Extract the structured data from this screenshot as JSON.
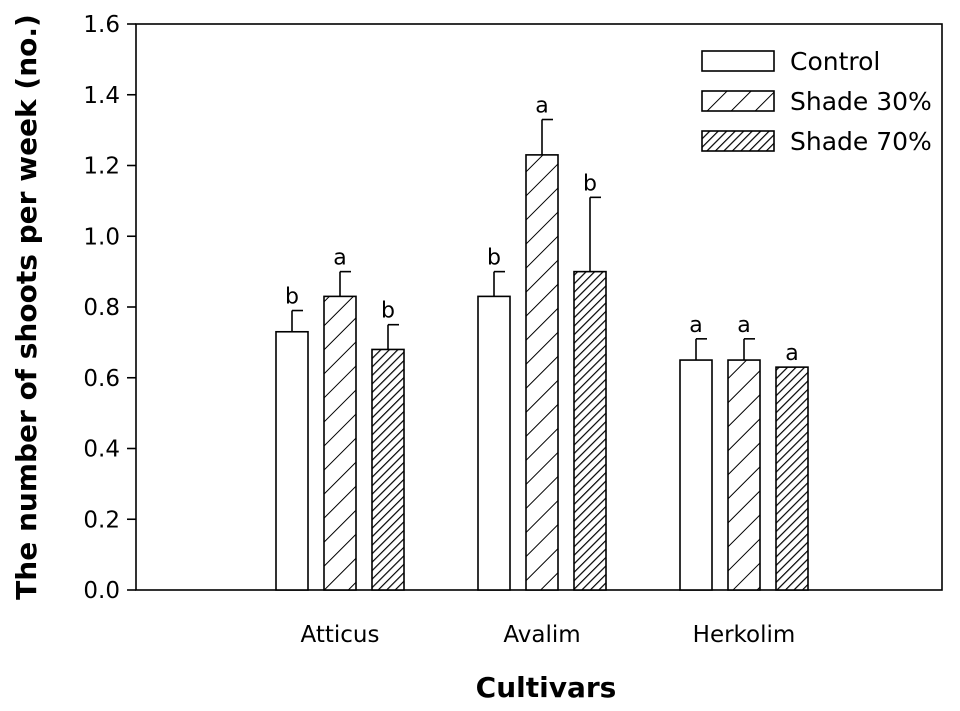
{
  "chart_data": {
    "type": "bar",
    "xlabel": "Cultivars",
    "ylabel": "The number of shoots per week (no.)",
    "ylim": [
      0,
      1.6
    ],
    "ytick_step": 0.2,
    "yticks": [
      "0.0",
      "0.2",
      "0.4",
      "0.6",
      "0.8",
      "1.0",
      "1.2",
      "1.4",
      "1.6"
    ],
    "categories": [
      "Atticus",
      "Avalim",
      "Herkolim"
    ],
    "legend_position": "top-right",
    "grid": false,
    "series": [
      {
        "name": "Control",
        "pattern": "none",
        "values": [
          0.73,
          0.83,
          0.65
        ],
        "errors": [
          0.06,
          0.07,
          0.06
        ],
        "letters": [
          "b",
          "b",
          "a"
        ]
      },
      {
        "name": "Shade 30%",
        "pattern": "sparse-diagonal",
        "values": [
          0.83,
          1.23,
          0.65
        ],
        "errors": [
          0.07,
          0.1,
          0.06
        ],
        "letters": [
          "a",
          "a",
          "a"
        ]
      },
      {
        "name": "Shade 70%",
        "pattern": "dense-diagonal",
        "values": [
          0.68,
          0.9,
          0.63
        ],
        "errors": [
          0.07,
          0.21,
          0.0
        ],
        "letters": [
          "b",
          "b",
          "a"
        ]
      }
    ]
  }
}
